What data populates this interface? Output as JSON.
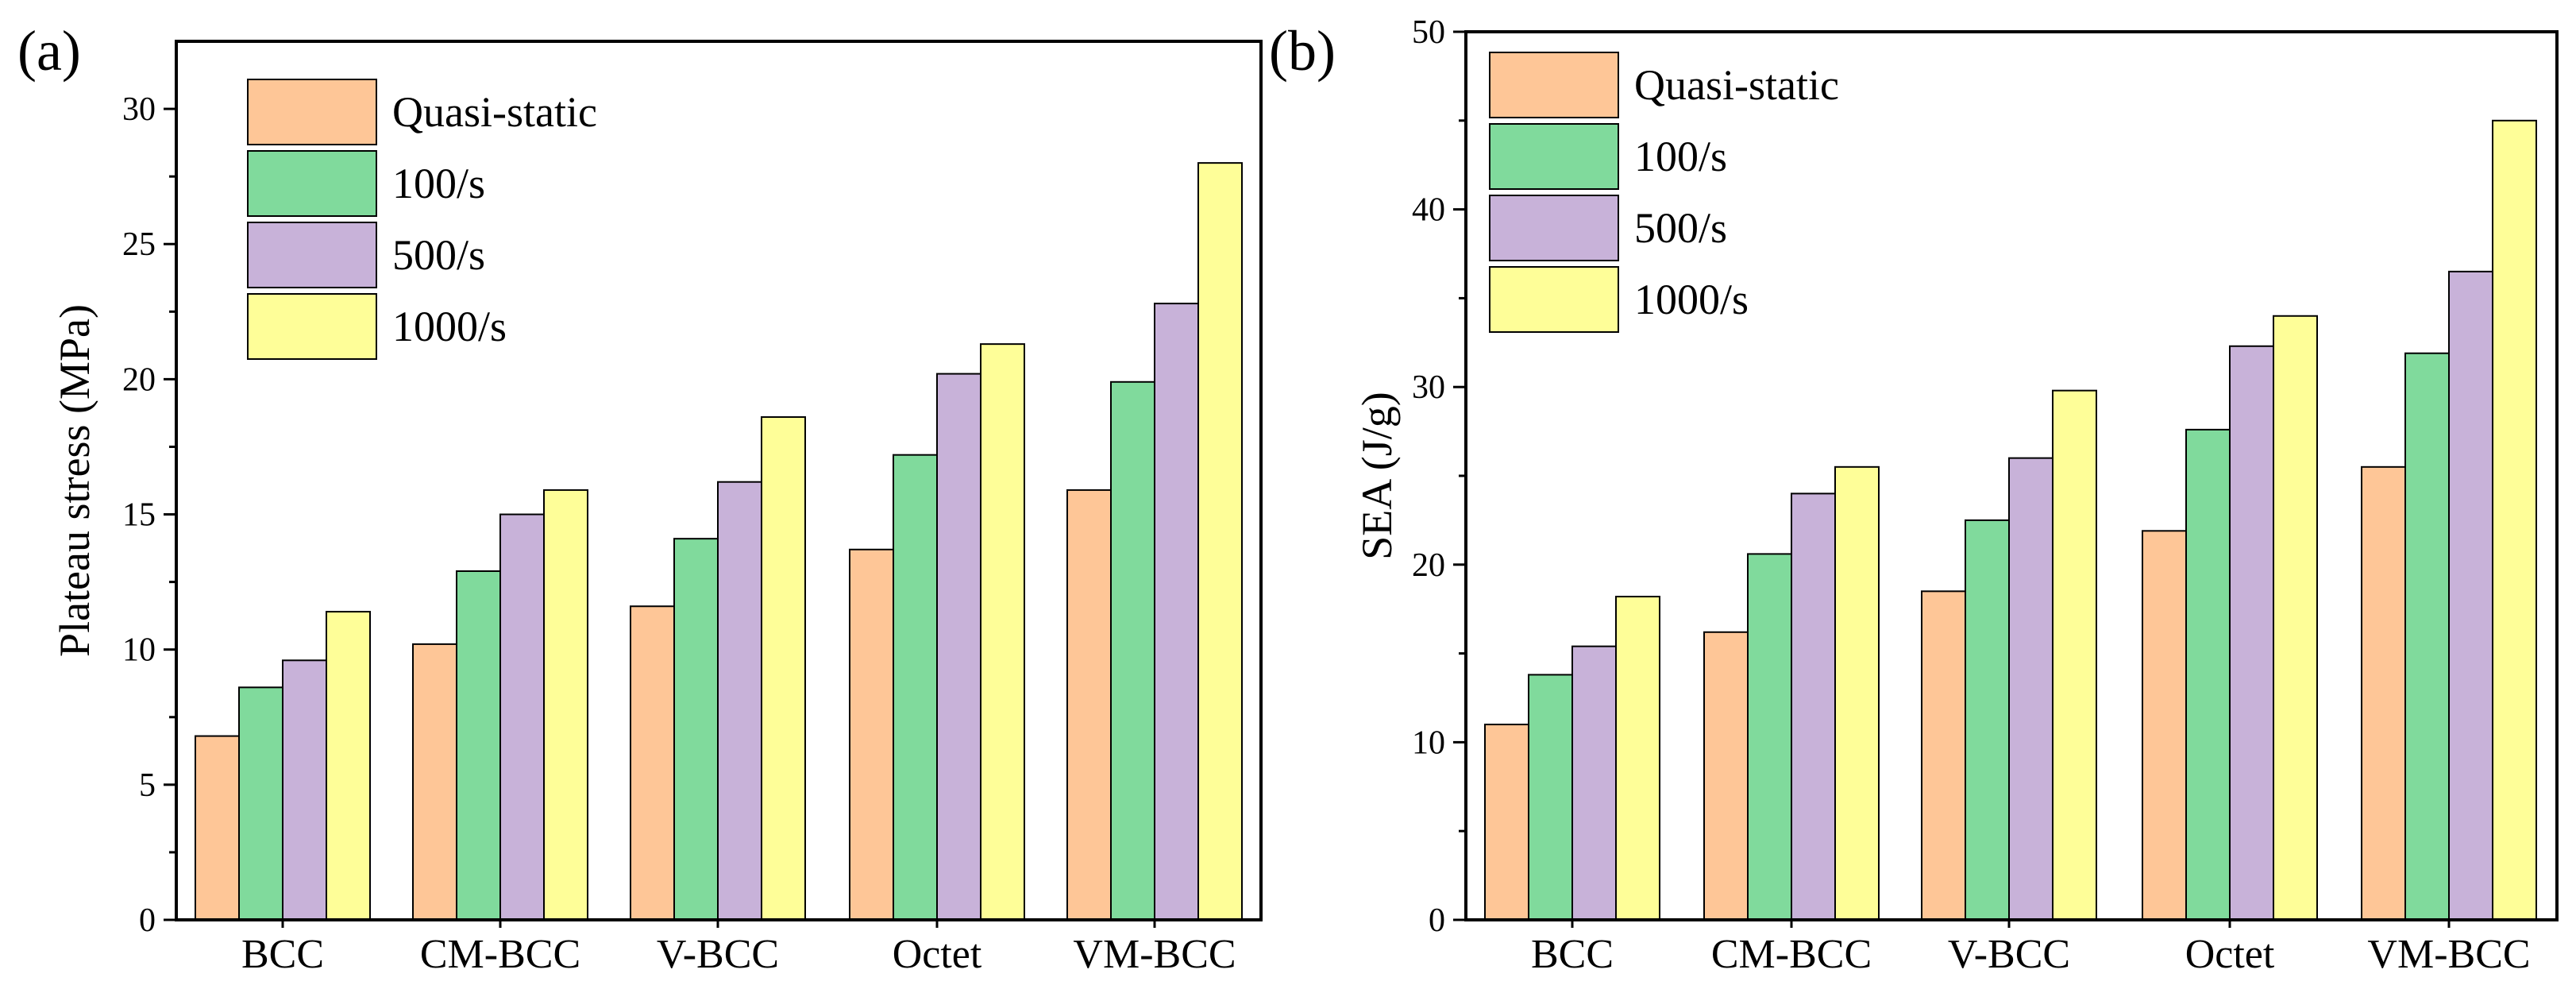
{
  "colors": {
    "series": [
      "#FEC697",
      "#80DA9C",
      "#C8B2D9",
      "#FEFE98"
    ],
    "bar_stroke": "#000000",
    "frame": "#000000"
  },
  "chart_data": [
    {
      "type": "bar",
      "panel_label": "(a)",
      "xlabel": "",
      "ylabel": "Plateau stress (MPa)",
      "ylim": [
        0,
        32.5
      ],
      "yticks": [
        0,
        5,
        10,
        15,
        20,
        25,
        30
      ],
      "grid": false,
      "legend": "top-left",
      "categories": [
        "BCC",
        "CM-BCC",
        "V-BCC",
        "Octet",
        "VM-BCC"
      ],
      "series": [
        {
          "name": "Quasi-static",
          "values": [
            6.8,
            10.2,
            11.6,
            13.7,
            15.9
          ]
        },
        {
          "name": "100/s",
          "values": [
            8.6,
            12.9,
            14.1,
            17.2,
            19.9
          ]
        },
        {
          "name": "500/s",
          "values": [
            9.6,
            15.0,
            16.2,
            20.2,
            22.8
          ]
        },
        {
          "name": "1000/s",
          "values": [
            11.4,
            15.9,
            18.6,
            21.3,
            28.0
          ]
        }
      ]
    },
    {
      "type": "bar",
      "panel_label": "(b)",
      "xlabel": "",
      "ylabel": "SEA (J/g)",
      "ylim": [
        0,
        50
      ],
      "yticks": [
        0,
        10,
        20,
        30,
        40,
        50
      ],
      "grid": false,
      "legend": "top-left",
      "categories": [
        "BCC",
        "CM-BCC",
        "V-BCC",
        "Octet",
        "VM-BCC"
      ],
      "series": [
        {
          "name": "Quasi-static",
          "values": [
            11.0,
            16.2,
            18.5,
            21.9,
            25.5
          ]
        },
        {
          "name": "100/s",
          "values": [
            13.8,
            20.6,
            22.5,
            27.6,
            31.9
          ]
        },
        {
          "name": "500/s",
          "values": [
            15.4,
            24.0,
            26.0,
            32.3,
            36.5
          ]
        },
        {
          "name": "1000/s",
          "values": [
            18.2,
            25.5,
            29.8,
            34.0,
            45.0
          ]
        }
      ]
    }
  ]
}
